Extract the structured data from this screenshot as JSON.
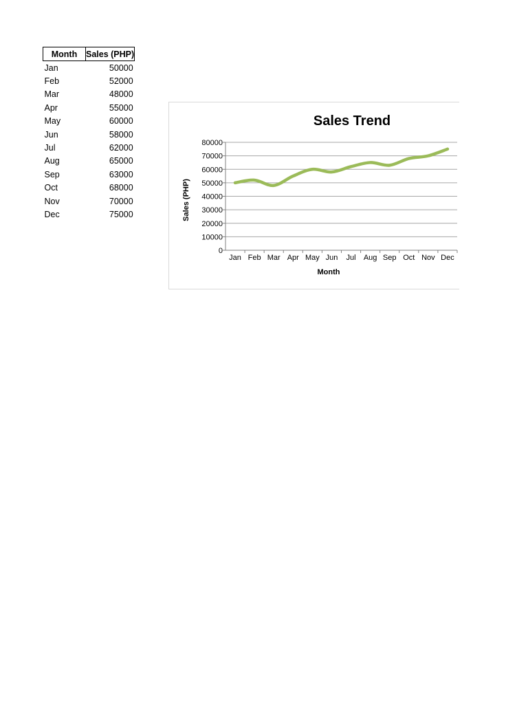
{
  "table": {
    "headers": [
      "Month",
      "Sales (PHP)"
    ],
    "rows": [
      [
        "Jan",
        "50000"
      ],
      [
        "Feb",
        "52000"
      ],
      [
        "Mar",
        "48000"
      ],
      [
        "Apr",
        "55000"
      ],
      [
        "May",
        "60000"
      ],
      [
        "Jun",
        "58000"
      ],
      [
        "Jul",
        "62000"
      ],
      [
        "Aug",
        "65000"
      ],
      [
        "Sep",
        "63000"
      ],
      [
        "Oct",
        "68000"
      ],
      [
        "Nov",
        "70000"
      ],
      [
        "Dec",
        "75000"
      ]
    ]
  },
  "chart_data": {
    "type": "line",
    "title": "Sales Trend",
    "xlabel": "Month",
    "ylabel": "Sales (PHP)",
    "categories": [
      "Jan",
      "Feb",
      "Mar",
      "Apr",
      "May",
      "Jun",
      "Jul",
      "Aug",
      "Sep",
      "Oct",
      "Nov",
      "Dec"
    ],
    "series": [
      {
        "values": [
          50000,
          52000,
          48000,
          55000,
          60000,
          58000,
          62000,
          65000,
          63000,
          68000,
          70000,
          75000
        ],
        "color": "#9bbb59"
      }
    ],
    "ylim": [
      0,
      80000
    ],
    "yticks": [
      0,
      10000,
      20000,
      30000,
      40000,
      50000,
      60000,
      70000,
      80000
    ],
    "grid": true,
    "legend": "none",
    "smooth": true
  }
}
